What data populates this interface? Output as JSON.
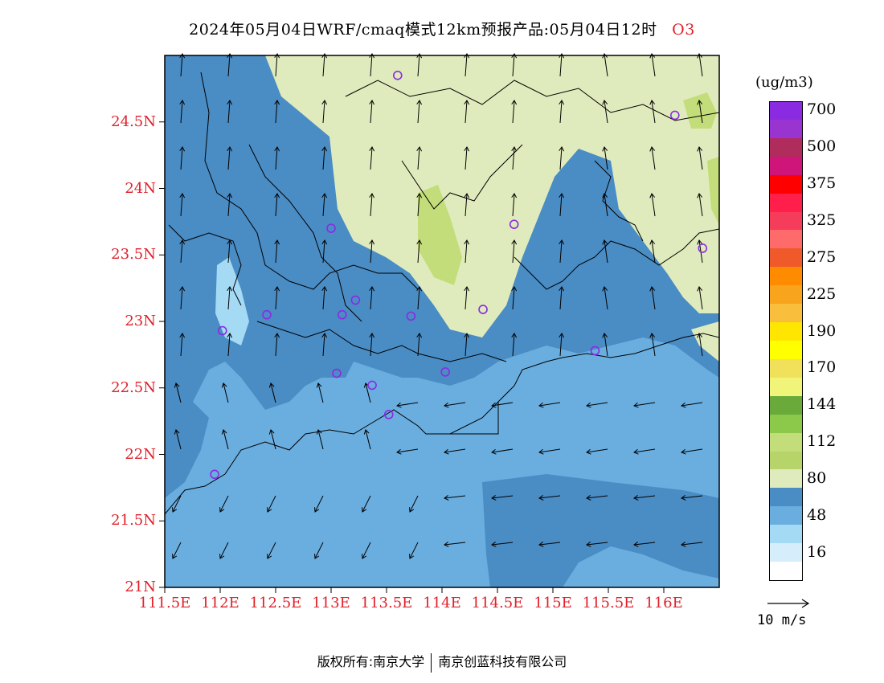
{
  "title": {
    "main": "2024年05月04日WRF/cmaq模式12km预报产品:05月04日12时",
    "species": "O3"
  },
  "map": {
    "lat_labels": [
      "24.5N",
      "24N",
      "23.5N",
      "23N",
      "22.5N",
      "22N",
      "21.5N",
      "21N"
    ],
    "lon_labels": [
      "111.5E",
      "112E",
      "112.5E",
      "113E",
      "113.5E",
      "114E",
      "114.5E",
      "115E",
      "115.5E",
      "116E"
    ],
    "stations": [
      {
        "lon": 113.6,
        "lat": 24.85
      },
      {
        "lon": 116.1,
        "lat": 24.55
      },
      {
        "lon": 113.0,
        "lat": 23.7
      },
      {
        "lon": 114.65,
        "lat": 23.73
      },
      {
        "lon": 116.35,
        "lat": 23.55
      },
      {
        "lon": 112.42,
        "lat": 23.05
      },
      {
        "lon": 113.1,
        "lat": 23.05
      },
      {
        "lon": 113.22,
        "lat": 23.16
      },
      {
        "lon": 113.72,
        "lat": 23.04
      },
      {
        "lon": 114.37,
        "lat": 23.09
      },
      {
        "lon": 112.02,
        "lat": 22.93
      },
      {
        "lon": 115.38,
        "lat": 22.78
      },
      {
        "lon": 113.05,
        "lat": 22.61
      },
      {
        "lon": 114.03,
        "lat": 22.62
      },
      {
        "lon": 113.37,
        "lat": 22.52
      },
      {
        "lon": 113.52,
        "lat": 22.3
      },
      {
        "lon": 111.95,
        "lat": 21.85
      }
    ],
    "colors": {
      "ocean_dark": "#4a8cc4",
      "land_mid": "#6aaee0",
      "light": "#9dd3f2",
      "pale": "#e0ebbd",
      "green": "#c3dd7a",
      "border": "#000000"
    }
  },
  "colorbar": {
    "unit": "(ug/m3)",
    "levels": [
      {
        "label": "700",
        "color": "#8a2be2"
      },
      {
        "label": "",
        "color": "#9a34d0"
      },
      {
        "label": "500",
        "color": "#b02c5c"
      },
      {
        "label": "",
        "color": "#d0157a"
      },
      {
        "label": "375",
        "color": "#ff0000"
      },
      {
        "label": "",
        "color": "#ff1f4a"
      },
      {
        "label": "325",
        "color": "#f53c5a"
      },
      {
        "label": "",
        "color": "#ff6a6a"
      },
      {
        "label": "275",
        "color": "#f0592a"
      },
      {
        "label": "",
        "color": "#ff8c00"
      },
      {
        "label": "225",
        "color": "#f8a41c"
      },
      {
        "label": "",
        "color": "#f8be3c"
      },
      {
        "label": "190",
        "color": "#ffe600"
      },
      {
        "label": "",
        "color": "#ffff00"
      },
      {
        "label": "170",
        "color": "#f0e05a"
      },
      {
        "label": "",
        "color": "#f0f57a"
      },
      {
        "label": "144",
        "color": "#6aaa3a"
      },
      {
        "label": "",
        "color": "#8cc84a"
      },
      {
        "label": "112",
        "color": "#c3dd7a"
      },
      {
        "label": "",
        "color": "#b6d46a"
      },
      {
        "label": "80",
        "color": "#e0ebbd"
      },
      {
        "label": "",
        "color": "#4a8cc4"
      },
      {
        "label": "48",
        "color": "#6aaee0"
      },
      {
        "label": "",
        "color": "#a5daf5"
      },
      {
        "label": "16",
        "color": "#d6eefb"
      },
      {
        "label": "",
        "color": "#ffffff"
      }
    ]
  },
  "wind_reference": {
    "label": "10 m/s"
  },
  "footer": {
    "left": "版权所有:南京大学",
    "right": "南京创蓝科技有限公司"
  }
}
